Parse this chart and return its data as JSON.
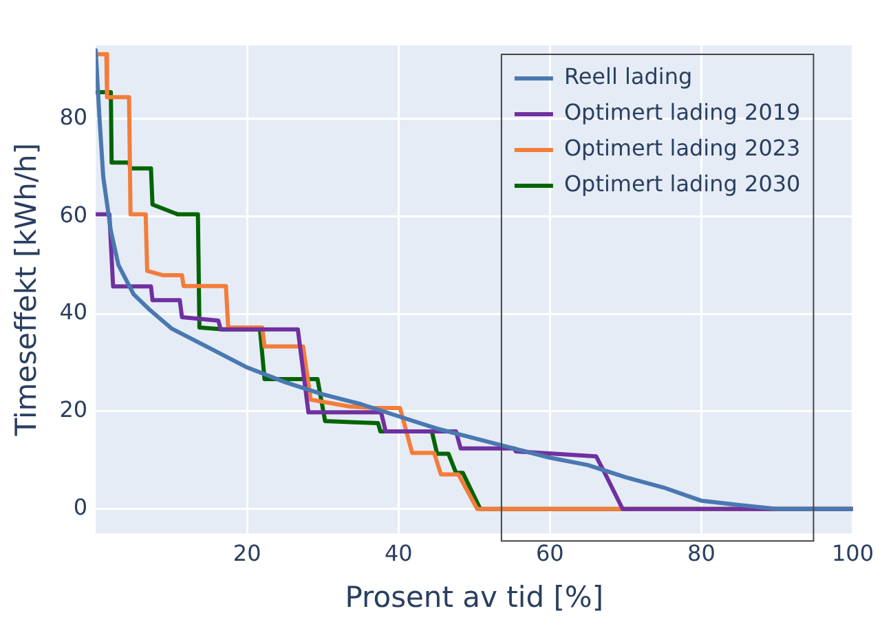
{
  "chart_data": {
    "type": "line",
    "xlabel": "Prosent av tid [%]",
    "ylabel": "Timeseffekt [kWh/h]",
    "xlim": [
      0,
      100
    ],
    "ylim": [
      -5,
      95
    ],
    "xticks": [
      20,
      40,
      60,
      80,
      100
    ],
    "yticks": [
      0,
      20,
      40,
      60,
      80
    ],
    "grid": true,
    "legend": "top right",
    "marker": "none",
    "line_style": "solid",
    "series": [
      {
        "name": "Reell lading",
        "color": "#4a78b0",
        "x": [
          0,
          0.5,
          1,
          2,
          3,
          5,
          7,
          10,
          15,
          20,
          25,
          30,
          35,
          40,
          45,
          50,
          55,
          60,
          65,
          70,
          75,
          80,
          85,
          90,
          100
        ],
        "values": [
          94,
          80,
          68,
          57,
          50,
          44,
          41,
          37,
          33,
          29,
          26,
          23.5,
          21.5,
          19,
          16.5,
          14.5,
          12.5,
          10.5,
          9,
          6.5,
          4.4,
          1.7,
          0.8,
          0,
          0
        ]
      },
      {
        "name": "Optimert lading 2019",
        "color": "#7030a0",
        "x": [
          0,
          1.8,
          2.3,
          7.3,
          7.5,
          11.1,
          11.4,
          16.2,
          16.5,
          26.7,
          28.1,
          37.7,
          38.3,
          47.6,
          48.2,
          55.3,
          55.5,
          66.1,
          67.4,
          69.6,
          100
        ],
        "values": [
          60.4,
          60.4,
          45.6,
          45.6,
          42.8,
          42.8,
          39.3,
          38.6,
          36.8,
          36.8,
          19.8,
          19.8,
          15.9,
          15.9,
          12.4,
          12.4,
          11.8,
          10.8,
          6.9,
          0,
          0
        ]
      },
      {
        "name": "Optimert lading 2023",
        "color": "#f47c3a",
        "x": [
          0,
          1.4,
          1.5,
          4.4,
          4.6,
          6.6,
          6.8,
          8.9,
          11.4,
          11.6,
          17.2,
          17.5,
          22,
          22.3,
          27.4,
          28.4,
          33.5,
          36.7,
          40.2,
          41.8,
          44.7,
          45.6,
          47.9,
          50.4,
          100
        ],
        "values": [
          93.2,
          93.2,
          84.4,
          84.4,
          60.4,
          60.4,
          48.8,
          47.9,
          47.9,
          45.7,
          45.7,
          37.2,
          37.2,
          33.3,
          33.3,
          22.4,
          21,
          20.7,
          20.7,
          11.5,
          11.5,
          7.1,
          7.1,
          0,
          0
        ]
      },
      {
        "name": "Optimert lading 2030",
        "color": "#006400",
        "x": [
          0,
          2,
          2.1,
          4.4,
          4.6,
          7.3,
          7.5,
          10.8,
          13.5,
          13.7,
          16.9,
          21.7,
          22.3,
          29.3,
          30.3,
          37.3,
          37.6,
          44.4,
          45.1,
          46.6,
          47.6,
          48.5,
          50.8,
          100
        ],
        "values": [
          85.4,
          85.4,
          71,
          71,
          69.8,
          69.8,
          62.4,
          60.4,
          60.4,
          37.2,
          36.8,
          36.8,
          26.6,
          26.6,
          18,
          17.6,
          15.9,
          15.9,
          11.3,
          11.3,
          7.4,
          7.4,
          0,
          0
        ]
      }
    ]
  }
}
